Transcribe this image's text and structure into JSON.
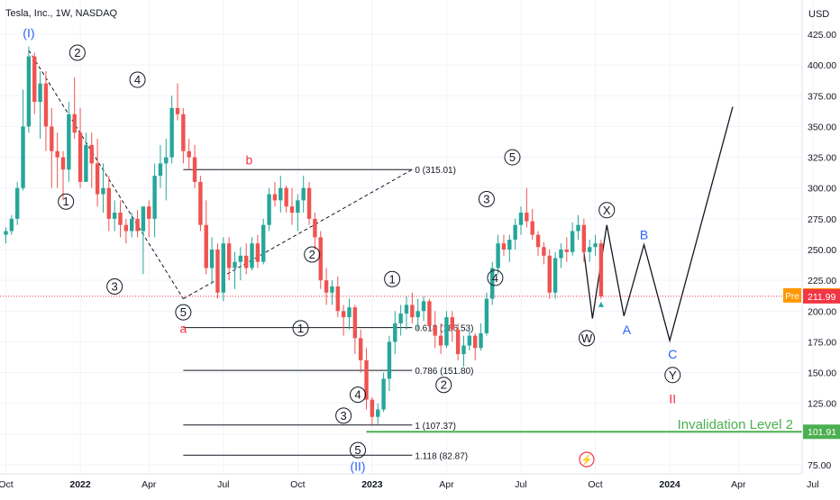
{
  "header": {
    "symbol_title": "Tesla, Inc., 1W, NASDAQ",
    "currency": "USD"
  },
  "chart_data": {
    "type": "candlestick",
    "title": "Tesla, Inc., 1W, NASDAQ",
    "ylabel": "USD",
    "ylim": [
      70,
      437
    ],
    "y_ticks": [
      75,
      100,
      125,
      150,
      175,
      200,
      225,
      250,
      275,
      300,
      325,
      350,
      375,
      400,
      425
    ],
    "x_ticks": [
      "Oct",
      "2022",
      "Apr",
      "Jul",
      "Oct",
      "2023",
      "Apr",
      "Jul",
      "Oct",
      "2024",
      "Apr",
      "Jul"
    ],
    "colors": {
      "up": "#26a69a",
      "down": "#ef5350",
      "wave_dark": "#131722",
      "wave_blue": "#2962ff",
      "wave_red": "#f23645",
      "invalidation": "#4caf50",
      "price_line": "#f23645",
      "pre_badge": "#ff9800"
    },
    "series": [
      {
        "name": "candles",
        "values": [
          [
            262,
            268,
            255,
            265
          ],
          [
            265,
            278,
            262,
            275
          ],
          [
            275,
            305,
            270,
            300
          ],
          [
            300,
            380,
            298,
            350
          ],
          [
            350,
            415,
            345,
            407
          ],
          [
            407,
            410,
            360,
            370
          ],
          [
            370,
            395,
            340,
            385
          ],
          [
            385,
            395,
            330,
            350
          ],
          [
            350,
            365,
            300,
            330
          ],
          [
            330,
            345,
            300,
            325
          ],
          [
            325,
            330,
            290,
            315
          ],
          [
            315,
            370,
            305,
            360
          ],
          [
            360,
            390,
            340,
            345
          ],
          [
            345,
            365,
            300,
            305
          ],
          [
            305,
            345,
            305,
            335
          ],
          [
            335,
            345,
            300,
            320
          ],
          [
            320,
            340,
            285,
            295
          ],
          [
            295,
            320,
            280,
            300
          ],
          [
            300,
            310,
            265,
            275
          ],
          [
            275,
            290,
            265,
            280
          ],
          [
            280,
            290,
            260,
            270
          ],
          [
            270,
            275,
            255,
            265
          ],
          [
            265,
            280,
            260,
            275
          ],
          [
            275,
            282,
            260,
            265
          ],
          [
            265,
            285,
            230,
            285
          ],
          [
            285,
            290,
            260,
            275
          ],
          [
            275,
            320,
            260,
            310
          ],
          [
            310,
            335,
            300,
            320
          ],
          [
            320,
            340,
            290,
            325
          ],
          [
            325,
            375,
            320,
            365
          ],
          [
            365,
            385,
            355,
            360
          ],
          [
            360,
            365,
            320,
            330
          ],
          [
            330,
            340,
            315,
            325
          ],
          [
            325,
            335,
            300,
            305
          ],
          [
            305,
            310,
            265,
            270
          ],
          [
            270,
            290,
            230,
            235
          ],
          [
            235,
            260,
            222,
            250
          ],
          [
            250,
            255,
            210,
            215
          ],
          [
            215,
            260,
            208,
            255
          ],
          [
            255,
            260,
            225,
            235
          ],
          [
            235,
            248,
            218,
            240
          ],
          [
            240,
            252,
            225,
            245
          ],
          [
            245,
            255,
            230,
            235
          ],
          [
            235,
            260,
            233,
            255
          ],
          [
            255,
            262,
            235,
            240
          ],
          [
            240,
            275,
            238,
            270
          ],
          [
            270,
            300,
            265,
            295
          ],
          [
            295,
            305,
            285,
            290
          ],
          [
            290,
            310,
            280,
            300
          ],
          [
            300,
            302,
            280,
            285
          ],
          [
            285,
            300,
            270,
            280
          ],
          [
            280,
            295,
            265,
            290
          ],
          [
            290,
            310,
            280,
            300
          ],
          [
            300,
            305,
            270,
            275
          ],
          [
            275,
            280,
            250,
            260
          ],
          [
            260,
            265,
            218,
            225
          ],
          [
            225,
            235,
            205,
            215
          ],
          [
            215,
            225,
            205,
            220
          ],
          [
            220,
            228,
            195,
            200
          ],
          [
            200,
            205,
            180,
            195
          ],
          [
            195,
            210,
            185,
            203
          ],
          [
            203,
            205,
            165,
            178
          ],
          [
            178,
            185,
            150,
            160
          ],
          [
            160,
            170,
            120,
            128
          ],
          [
            128,
            130,
            108,
            114
          ],
          [
            114,
            125,
            108,
            120
          ],
          [
            120,
            150,
            118,
            145
          ],
          [
            145,
            180,
            135,
            175
          ],
          [
            175,
            200,
            165,
            190
          ],
          [
            190,
            205,
            180,
            198
          ],
          [
            198,
            212,
            185,
            205
          ],
          [
            205,
            215,
            190,
            195
          ],
          [
            195,
            210,
            185,
            200
          ],
          [
            200,
            212,
            192,
            208
          ],
          [
            208,
            210,
            185,
            188
          ],
          [
            188,
            200,
            170,
            180
          ],
          [
            180,
            190,
            165,
            172
          ],
          [
            172,
            200,
            170,
            195
          ],
          [
            195,
            200,
            175,
            185
          ],
          [
            185,
            190,
            160,
            165
          ],
          [
            165,
            180,
            155,
            172
          ],
          [
            172,
            185,
            168,
            180
          ],
          [
            180,
            182,
            160,
            170
          ],
          [
            170,
            190,
            168,
            182
          ],
          [
            182,
            215,
            180,
            210
          ],
          [
            210,
            240,
            205,
            235
          ],
          [
            235,
            262,
            230,
            255
          ],
          [
            255,
            262,
            245,
            250
          ],
          [
            250,
            262,
            240,
            258
          ],
          [
            258,
            275,
            250,
            270
          ],
          [
            270,
            285,
            262,
            280
          ],
          [
            280,
            300,
            268,
            273
          ],
          [
            273,
            283,
            258,
            262
          ],
          [
            262,
            265,
            245,
            252
          ],
          [
            252,
            256,
            238,
            245
          ],
          [
            245,
            250,
            210,
            215
          ],
          [
            215,
            248,
            210,
            243
          ],
          [
            243,
            255,
            235,
            250
          ],
          [
            250,
            260,
            240,
            248
          ],
          [
            248,
            272,
            245,
            265
          ],
          [
            265,
            278,
            258,
            270
          ],
          [
            270,
            275,
            240,
            248
          ],
          [
            248,
            258,
            240,
            252
          ],
          [
            252,
            262,
            245,
            255
          ],
          [
            255,
            258,
            210,
            212
          ]
        ]
      }
    ],
    "last_price": 211.99,
    "pre_price": 212.75,
    "pre_label": "Pre",
    "invalidation_price": 101.91,
    "invalidation_label": "Invalidation Level 2",
    "fib_levels": [
      {
        "label": "0 (315.01)",
        "value": 315.01
      },
      {
        "label": "0.618 (186.53)",
        "value": 186.53
      },
      {
        "label": "0.786 (151.80)",
        "value": 151.8
      },
      {
        "label": "1 (107.37)",
        "value": 107.37
      },
      {
        "label": "1.118 (82.87)",
        "value": 82.87
      }
    ],
    "wave_labels": [
      {
        "text": "(I)",
        "color": "blue",
        "circled": false,
        "price": 426,
        "bar": 4
      },
      {
        "text": "2",
        "color": "dark",
        "circled": true,
        "price": 410,
        "bar": 12.5
      },
      {
        "text": "4",
        "color": "dark",
        "circled": true,
        "price": 388,
        "bar": 23
      },
      {
        "text": "1",
        "color": "dark",
        "circled": true,
        "price": 289,
        "bar": 10.5
      },
      {
        "text": "3",
        "color": "dark",
        "circled": true,
        "price": 220,
        "bar": 19
      },
      {
        "text": "5",
        "color": "dark",
        "circled": true,
        "price": 199,
        "bar": 31
      },
      {
        "text": "a",
        "color": "red",
        "circled": false,
        "price": 186,
        "bar": 31
      },
      {
        "text": "b",
        "color": "red",
        "circled": false,
        "price": 323,
        "bar": 42.5
      },
      {
        "text": "2",
        "color": "dark",
        "circled": true,
        "price": 246,
        "bar": 53.5
      },
      {
        "text": "1",
        "color": "dark",
        "circled": true,
        "price": 186,
        "bar": 51.5
      },
      {
        "text": "3",
        "color": "dark",
        "circled": true,
        "price": 115,
        "bar": 59
      },
      {
        "text": "4",
        "color": "dark",
        "circled": true,
        "price": 132,
        "bar": 61.5
      },
      {
        "text": "5",
        "color": "dark",
        "circled": true,
        "price": 87,
        "bar": 61.5
      },
      {
        "text": "(II)",
        "color": "blue",
        "circled": false,
        "price": 74,
        "bar": 61.5
      },
      {
        "text": "1",
        "color": "dark",
        "circled": true,
        "price": 226,
        "bar": 67.5
      },
      {
        "text": "2",
        "color": "dark",
        "circled": true,
        "price": 140,
        "bar": 76.5
      },
      {
        "text": "3",
        "color": "dark",
        "circled": true,
        "price": 291,
        "bar": 84
      },
      {
        "text": "4",
        "color": "dark",
        "circled": true,
        "price": 227,
        "bar": 85.5
      },
      {
        "text": "5",
        "color": "dark",
        "circled": true,
        "price": 325,
        "bar": 88.5
      },
      {
        "text": "W",
        "color": "dark",
        "circled": true,
        "price": 178,
        "bar": 101.5
      },
      {
        "text": "X",
        "color": "dark",
        "circled": true,
        "price": 282,
        "bar": 105
      },
      {
        "text": "A",
        "color": "blue",
        "circled": false,
        "price": 185,
        "bar": 108.5
      },
      {
        "text": "B",
        "color": "blue",
        "circled": false,
        "price": 262,
        "bar": 111.5
      },
      {
        "text": "C",
        "color": "blue",
        "circled": false,
        "price": 165,
        "bar": 116.5
      },
      {
        "text": "Y",
        "color": "dark",
        "circled": true,
        "price": 148,
        "bar": 116.5
      },
      {
        "text": "II",
        "color": "red",
        "circled": false,
        "price": 129,
        "bar": 116.5
      }
    ],
    "projection_path": [
      {
        "bar": 101,
        "price": 248
      },
      {
        "bar": 102.5,
        "price": 194
      },
      {
        "bar": 105,
        "price": 270
      },
      {
        "bar": 108,
        "price": 196
      },
      {
        "bar": 111.5,
        "price": 254
      },
      {
        "bar": 116,
        "price": 176
      },
      {
        "bar": 127,
        "price": 366
      }
    ],
    "dashed_paths": [
      [
        {
          "bar": 4,
          "price": 412
        },
        {
          "bar": 31,
          "price": 210
        }
      ],
      [
        {
          "bar": 31,
          "price": 210
        },
        {
          "bar": 71,
          "price": 315.01
        }
      ]
    ],
    "x_tick_bars": [
      0,
      13,
      25,
      38,
      51,
      64,
      77,
      90,
      103,
      116,
      128,
      141
    ],
    "fib_start_bar": 31,
    "fib_end_bar": 71,
    "invalidation_start_bar": 63,
    "n_bars": 145
  }
}
